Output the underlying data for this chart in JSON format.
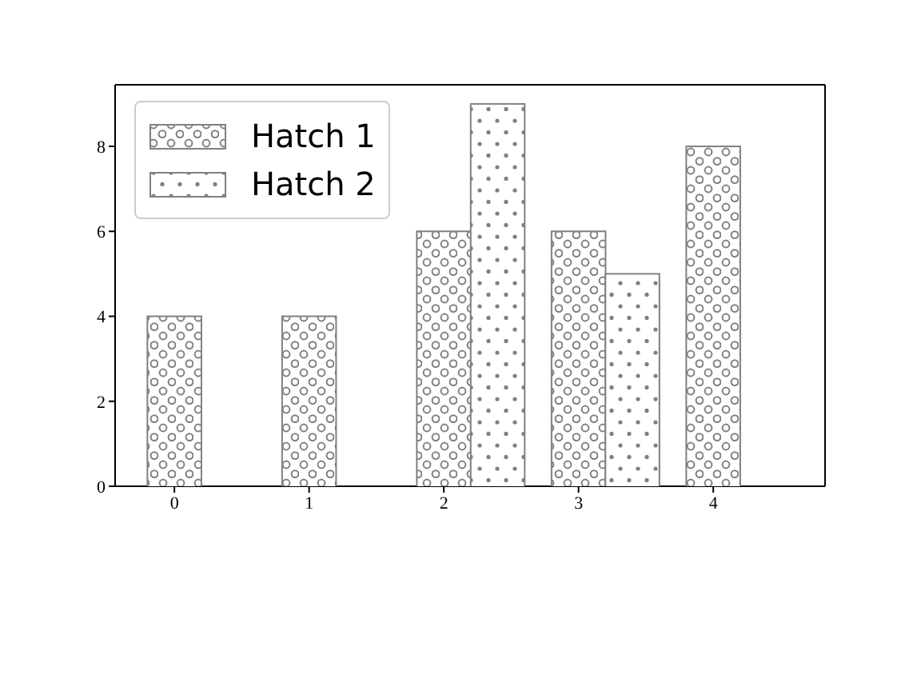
{
  "chart_data": {
    "type": "bar",
    "xlim": [
      -0.44,
      4.83
    ],
    "xticks": [
      0,
      1,
      2,
      3,
      4
    ],
    "ylim": [
      0,
      9.45
    ],
    "yticks": [
      0,
      2,
      4,
      6,
      8
    ],
    "legend": "top left",
    "series": [
      {
        "name": "Hatch 1",
        "color": "#808080",
        "x": [
          0,
          1,
          2,
          3,
          4
        ],
        "values": [
          4,
          4,
          6,
          6,
          8
        ]
      },
      {
        "name": "Hatch 2",
        "color": "#808080",
        "x": [
          2.4,
          3.4
        ],
        "values": [
          9,
          5
        ]
      }
    ]
  }
}
